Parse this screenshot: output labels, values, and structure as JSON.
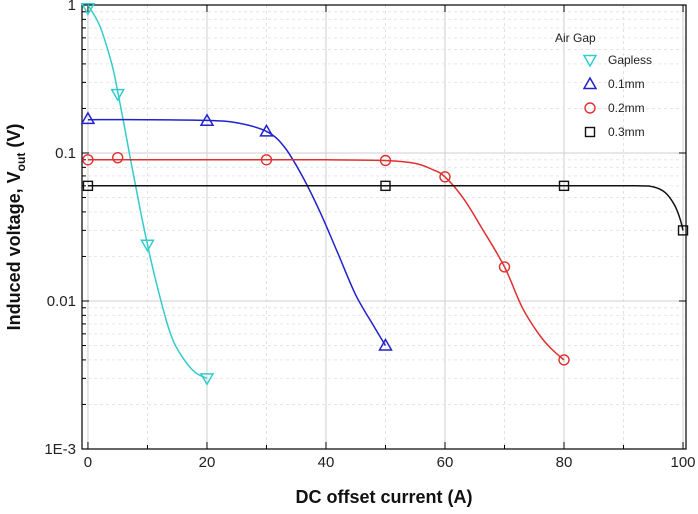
{
  "chart_data": {
    "type": "scatter",
    "xlabel": "DC offset current (A)",
    "ylabel_main": "Induced voltage, V",
    "ylabel_sub": "out",
    "ylabel_tail": " (V)",
    "xlim": [
      -1,
      100.5
    ],
    "ylim": [
      0.001,
      1
    ],
    "y_scale": "log",
    "grid": true,
    "legend_title": "Air Gap",
    "legend_position": "top-right",
    "x_ticks": [
      0,
      20,
      40,
      60,
      80,
      100
    ],
    "x_tick_labels": [
      "0",
      "20",
      "40",
      "60",
      "80",
      "100"
    ],
    "y_ticks": [
      1,
      0.1,
      0.01,
      0.001
    ],
    "y_tick_labels": [
      "1",
      "0.1",
      "0.01",
      "1E-3"
    ],
    "series": [
      {
        "name": "Gapless",
        "marker": "triangle-down",
        "color": "#33CCCC",
        "points": [
          [
            0,
            0.95
          ],
          [
            5,
            0.25
          ],
          [
            10,
            0.024
          ],
          [
            20,
            0.003
          ]
        ],
        "curve": [
          [
            0,
            1.0
          ],
          [
            2,
            0.72
          ],
          [
            4,
            0.4
          ],
          [
            5,
            0.26
          ],
          [
            6,
            0.16
          ],
          [
            8,
            0.06
          ],
          [
            10,
            0.024
          ],
          [
            12,
            0.011
          ],
          [
            14,
            0.0058
          ],
          [
            16,
            0.0041
          ],
          [
            18,
            0.0033
          ],
          [
            20,
            0.003
          ]
        ]
      },
      {
        "name": "0.1mm",
        "marker": "triangle-up",
        "color": "#2222CC",
        "points": [
          [
            0,
            0.17
          ],
          [
            20,
            0.165
          ],
          [
            30,
            0.14
          ],
          [
            50,
            0.005
          ]
        ],
        "curve": [
          [
            0,
            0.168
          ],
          [
            10,
            0.168
          ],
          [
            20,
            0.166
          ],
          [
            25,
            0.16
          ],
          [
            30,
            0.14
          ],
          [
            33,
            0.11
          ],
          [
            36,
            0.07
          ],
          [
            39,
            0.04
          ],
          [
            42,
            0.021
          ],
          [
            45,
            0.011
          ],
          [
            48,
            0.0068
          ],
          [
            50,
            0.005
          ]
        ]
      },
      {
        "name": "0.2mm",
        "marker": "circle",
        "color": "#E03030",
        "points": [
          [
            0,
            0.09
          ],
          [
            5,
            0.093
          ],
          [
            30,
            0.09
          ],
          [
            50,
            0.089
          ],
          [
            60,
            0.069
          ],
          [
            70,
            0.017
          ],
          [
            80,
            0.004
          ]
        ],
        "curve": [
          [
            0,
            0.09
          ],
          [
            20,
            0.09
          ],
          [
            40,
            0.09
          ],
          [
            50,
            0.089
          ],
          [
            55,
            0.085
          ],
          [
            58,
            0.077
          ],
          [
            60,
            0.069
          ],
          [
            63,
            0.05
          ],
          [
            66,
            0.032
          ],
          [
            70,
            0.017
          ],
          [
            73,
            0.009
          ],
          [
            76,
            0.0058
          ],
          [
            78,
            0.0047
          ],
          [
            80,
            0.004
          ]
        ]
      },
      {
        "name": "0.3mm",
        "marker": "square",
        "color": "#111111",
        "points": [
          [
            0,
            0.06
          ],
          [
            50,
            0.06
          ],
          [
            80,
            0.06
          ],
          [
            100,
            0.03
          ]
        ],
        "curve": [
          [
            0,
            0.06
          ],
          [
            50,
            0.06
          ],
          [
            80,
            0.06
          ],
          [
            92,
            0.06
          ],
          [
            95,
            0.059
          ],
          [
            97,
            0.054
          ],
          [
            98.5,
            0.045
          ],
          [
            99.5,
            0.036
          ],
          [
            100,
            0.03
          ]
        ]
      }
    ]
  }
}
